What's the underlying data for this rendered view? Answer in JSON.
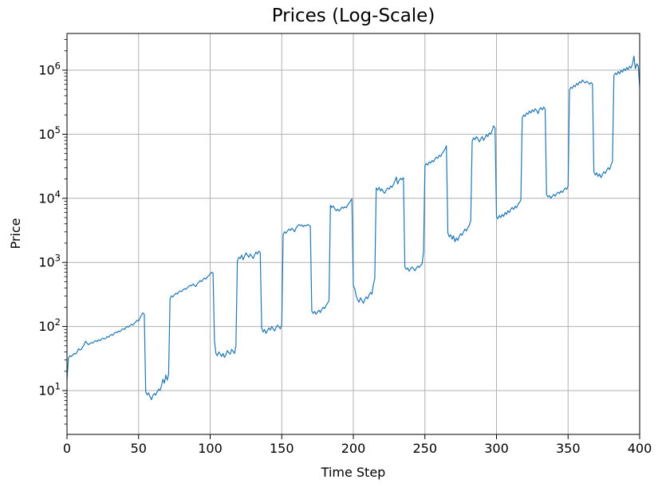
{
  "figure": {
    "title": "Prices (Log-Scale)",
    "xlabel": "Time Step",
    "ylabel": "Price"
  },
  "chart_data": {
    "type": "line",
    "title": "Prices (Log-Scale)",
    "xlabel": "Time Step",
    "ylabel": "Price",
    "yscale": "log",
    "grid": true,
    "legend": "none",
    "line_color": "#1f77b4",
    "grid_color": "#b0b0b0",
    "xlim": [
      0,
      400
    ],
    "ylim_log10": [
      0.316,
      6.572
    ],
    "x_ticks": [
      0,
      50,
      100,
      150,
      200,
      250,
      300,
      350,
      400
    ],
    "y_tick_exponents": [
      1,
      2,
      3,
      4,
      5,
      6
    ],
    "x_start": 0,
    "x_step": 1,
    "values": [
      15,
      32,
      35,
      34,
      36,
      38,
      37,
      40,
      45,
      43,
      44,
      48,
      52,
      59,
      55,
      52,
      54,
      56,
      55,
      58,
      60,
      58,
      62,
      60,
      63,
      66,
      64,
      65,
      70,
      68,
      72,
      75,
      73,
      78,
      82,
      80,
      85,
      83,
      88,
      92,
      90,
      95,
      100,
      98,
      104,
      108,
      105,
      112,
      118,
      125,
      122,
      135,
      150,
      163,
      155,
      9.5,
      8.6,
      9.2,
      8.0,
      7.2,
      8.4,
      9.0,
      8.5,
      9.6,
      10.5,
      10.0,
      12.0,
      15.0,
      13.0,
      17.5,
      14.5,
      18.0,
      270,
      300,
      290,
      310,
      330,
      320,
      345,
      360,
      350,
      370,
      390,
      380,
      400,
      420,
      440,
      430,
      460,
      440,
      420,
      460,
      490,
      520,
      500,
      540,
      570,
      550,
      590,
      620,
      660,
      700,
      680,
      60,
      38,
      35,
      40,
      37,
      34,
      38,
      33,
      36,
      42,
      39,
      37,
      44,
      41,
      38,
      50,
      1050,
      1200,
      1150,
      1300,
      1100,
      1250,
      1400,
      1300,
      1200,
      1350,
      1250,
      1150,
      1300,
      1450,
      1350,
      1500,
      1420,
      95,
      82,
      90,
      78,
      86,
      95,
      88,
      100,
      92,
      85,
      96,
      105,
      98,
      92,
      108,
      2700,
      3000,
      2850,
      3100,
      3300,
      3150,
      3400,
      3250,
      3000,
      3450,
      3700,
      3900,
      3750,
      3850,
      3600,
      3800,
      3700,
      3900,
      3800,
      3650,
      175,
      160,
      172,
      155,
      168,
      180,
      165,
      185,
      200,
      190,
      215,
      230,
      255,
      7800,
      7200,
      7600,
      6900,
      6400,
      6800,
      6300,
      6700,
      7300,
      7000,
      7400,
      7100,
      7800,
      8400,
      9100,
      9800,
      430,
      390,
      300,
      260,
      240,
      280,
      255,
      230,
      265,
      290,
      270,
      310,
      340,
      320,
      450,
      560,
      14500,
      13500,
      14800,
      13000,
      14000,
      12500,
      12000,
      13500,
      14500,
      13800,
      15500,
      14800,
      16500,
      18500,
      21500,
      16800,
      19000,
      20500,
      19500,
      21000,
      850,
      780,
      820,
      730,
      790,
      850,
      800,
      740,
      810,
      880,
      830,
      900,
      950,
      1450,
      32000,
      35000,
      33000,
      37000,
      35500,
      39000,
      37000,
      41000,
      44000,
      42000,
      47000,
      45000,
      50000,
      54000,
      58000,
      66000,
      2900,
      2500,
      2700,
      2300,
      2600,
      2100,
      2400,
      2200,
      2550,
      2800,
      2650,
      3000,
      3300,
      3100,
      3500,
      3800,
      4500,
      78000,
      88000,
      82000,
      92000,
      85000,
      76000,
      84000,
      92000,
      80000,
      88000,
      98000,
      92000,
      105000,
      100000,
      115000,
      135000,
      125000,
      5200,
      4800,
      5400,
      5000,
      5600,
      5200,
      6000,
      5600,
      6400,
      6000,
      6800,
      7200,
      6700,
      7500,
      7100,
      8000,
      8600,
      9300,
      180000,
      200000,
      190000,
      215000,
      205000,
      230000,
      215000,
      240000,
      225000,
      250000,
      235000,
      210000,
      245000,
      260000,
      240000,
      265000,
      245000,
      11500,
      10500,
      11000,
      10000,
      10800,
      11500,
      10800,
      11800,
      12500,
      11800,
      13000,
      12300,
      13500,
      14500,
      13800,
      15500,
      490000,
      540000,
      520000,
      580000,
      550000,
      620000,
      590000,
      660000,
      630000,
      700000,
      660000,
      630000,
      670000,
      640000,
      600000,
      640000,
      610000,
      26000,
      23000,
      25000,
      22000,
      24000,
      21000,
      23500,
      26000,
      24500,
      27500,
      30000,
      28000,
      33000,
      38000,
      820000,
      900000,
      850000,
      950000,
      880000,
      1000000,
      930000,
      1050000,
      980000,
      1100000,
      1020000,
      1150000,
      1080000,
      1250000,
      1650000,
      1050000,
      1250000,
      1150000,
      560000
    ]
  }
}
